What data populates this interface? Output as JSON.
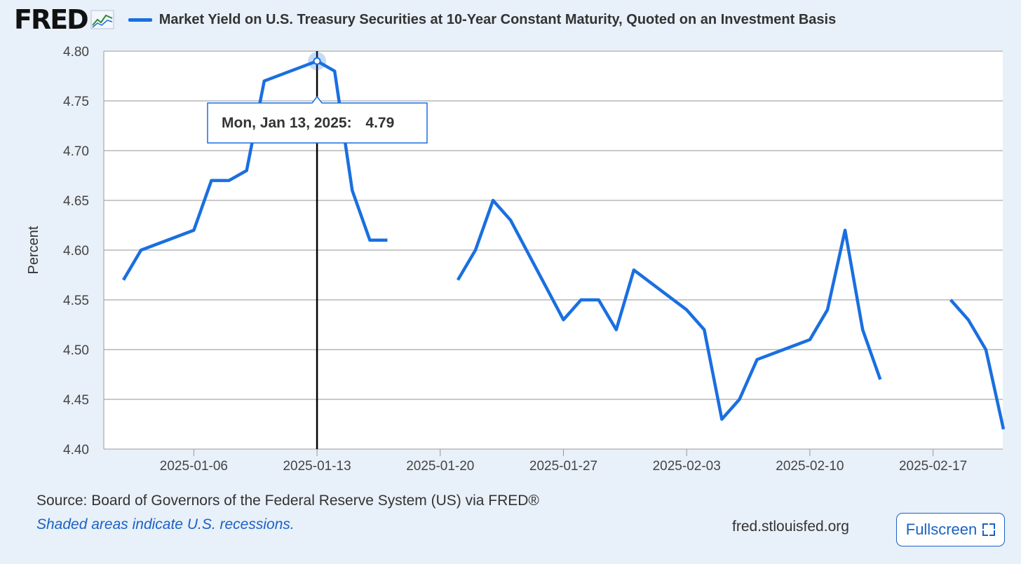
{
  "header": {
    "logo_text": "FRED",
    "logo_icon": "line-chart-icon",
    "legend_label": "Market Yield on U.S. Treasury Securities at 10-Year Constant Maturity, Quoted on an Investment Basis"
  },
  "colors": {
    "series": "#1a6fe0",
    "background": "#e8f0f9",
    "plot_background": "#ffffff",
    "grid": "#c9c9c9",
    "link": "#1a62c4"
  },
  "tooltip": {
    "date": "Mon, Jan 13, 2025:",
    "value": "4.79"
  },
  "footer": {
    "source": "Source: Board of Governors of the Federal Reserve System (US) via FRED®",
    "note": "Shaded areas indicate U.S. recessions.",
    "site": "fred.stlouisfed.org",
    "fullscreen_label": "Fullscreen",
    "fullscreen_icon": "expand-icon"
  },
  "chart_data": {
    "type": "line",
    "ylabel": "Percent",
    "ylim": [
      4.4,
      4.8
    ],
    "xlim": [
      "2025-01-02",
      "2025-02-21"
    ],
    "y_ticks": [
      "4.40",
      "4.45",
      "4.50",
      "4.55",
      "4.60",
      "4.65",
      "4.70",
      "4.75",
      "4.80"
    ],
    "x_ticks": [
      "2025-01-06",
      "2025-01-13",
      "2025-01-20",
      "2025-01-27",
      "2025-02-03",
      "2025-02-10",
      "2025-02-17"
    ],
    "grid": true,
    "highlight": {
      "x": "2025-01-13",
      "y": 4.79
    },
    "series": [
      {
        "points": [
          [
            "2025-01-02",
            4.57
          ],
          [
            "2025-01-03",
            4.6
          ],
          [
            "2025-01-06",
            4.62
          ],
          [
            "2025-01-07",
            4.67
          ],
          [
            "2025-01-08",
            4.67
          ],
          [
            "2025-01-09",
            4.68
          ],
          [
            "2025-01-10",
            4.77
          ],
          [
            "2025-01-13",
            4.79
          ],
          [
            "2025-01-14",
            4.78
          ],
          [
            "2025-01-15",
            4.66
          ],
          [
            "2025-01-16",
            4.61
          ],
          [
            "2025-01-17",
            4.61
          ],
          [
            "2025-01-20",
            null
          ],
          [
            "2025-01-21",
            4.57
          ],
          [
            "2025-01-22",
            4.6
          ],
          [
            "2025-01-23",
            4.65
          ],
          [
            "2025-01-24",
            4.63
          ],
          [
            "2025-01-27",
            4.53
          ],
          [
            "2025-01-28",
            4.55
          ],
          [
            "2025-01-29",
            4.55
          ],
          [
            "2025-01-30",
            4.52
          ],
          [
            "2025-01-31",
            4.58
          ],
          [
            "2025-02-03",
            4.54
          ],
          [
            "2025-02-04",
            4.52
          ],
          [
            "2025-02-05",
            4.43
          ],
          [
            "2025-02-06",
            4.45
          ],
          [
            "2025-02-07",
            4.49
          ],
          [
            "2025-02-10",
            4.51
          ],
          [
            "2025-02-11",
            4.54
          ],
          [
            "2025-02-12",
            4.62
          ],
          [
            "2025-02-13",
            4.52
          ],
          [
            "2025-02-14",
            4.47
          ],
          [
            "2025-02-17",
            null
          ],
          [
            "2025-02-18",
            4.55
          ],
          [
            "2025-02-19",
            4.53
          ],
          [
            "2025-02-20",
            4.5
          ],
          [
            "2025-02-21",
            4.42
          ]
        ]
      }
    ]
  }
}
